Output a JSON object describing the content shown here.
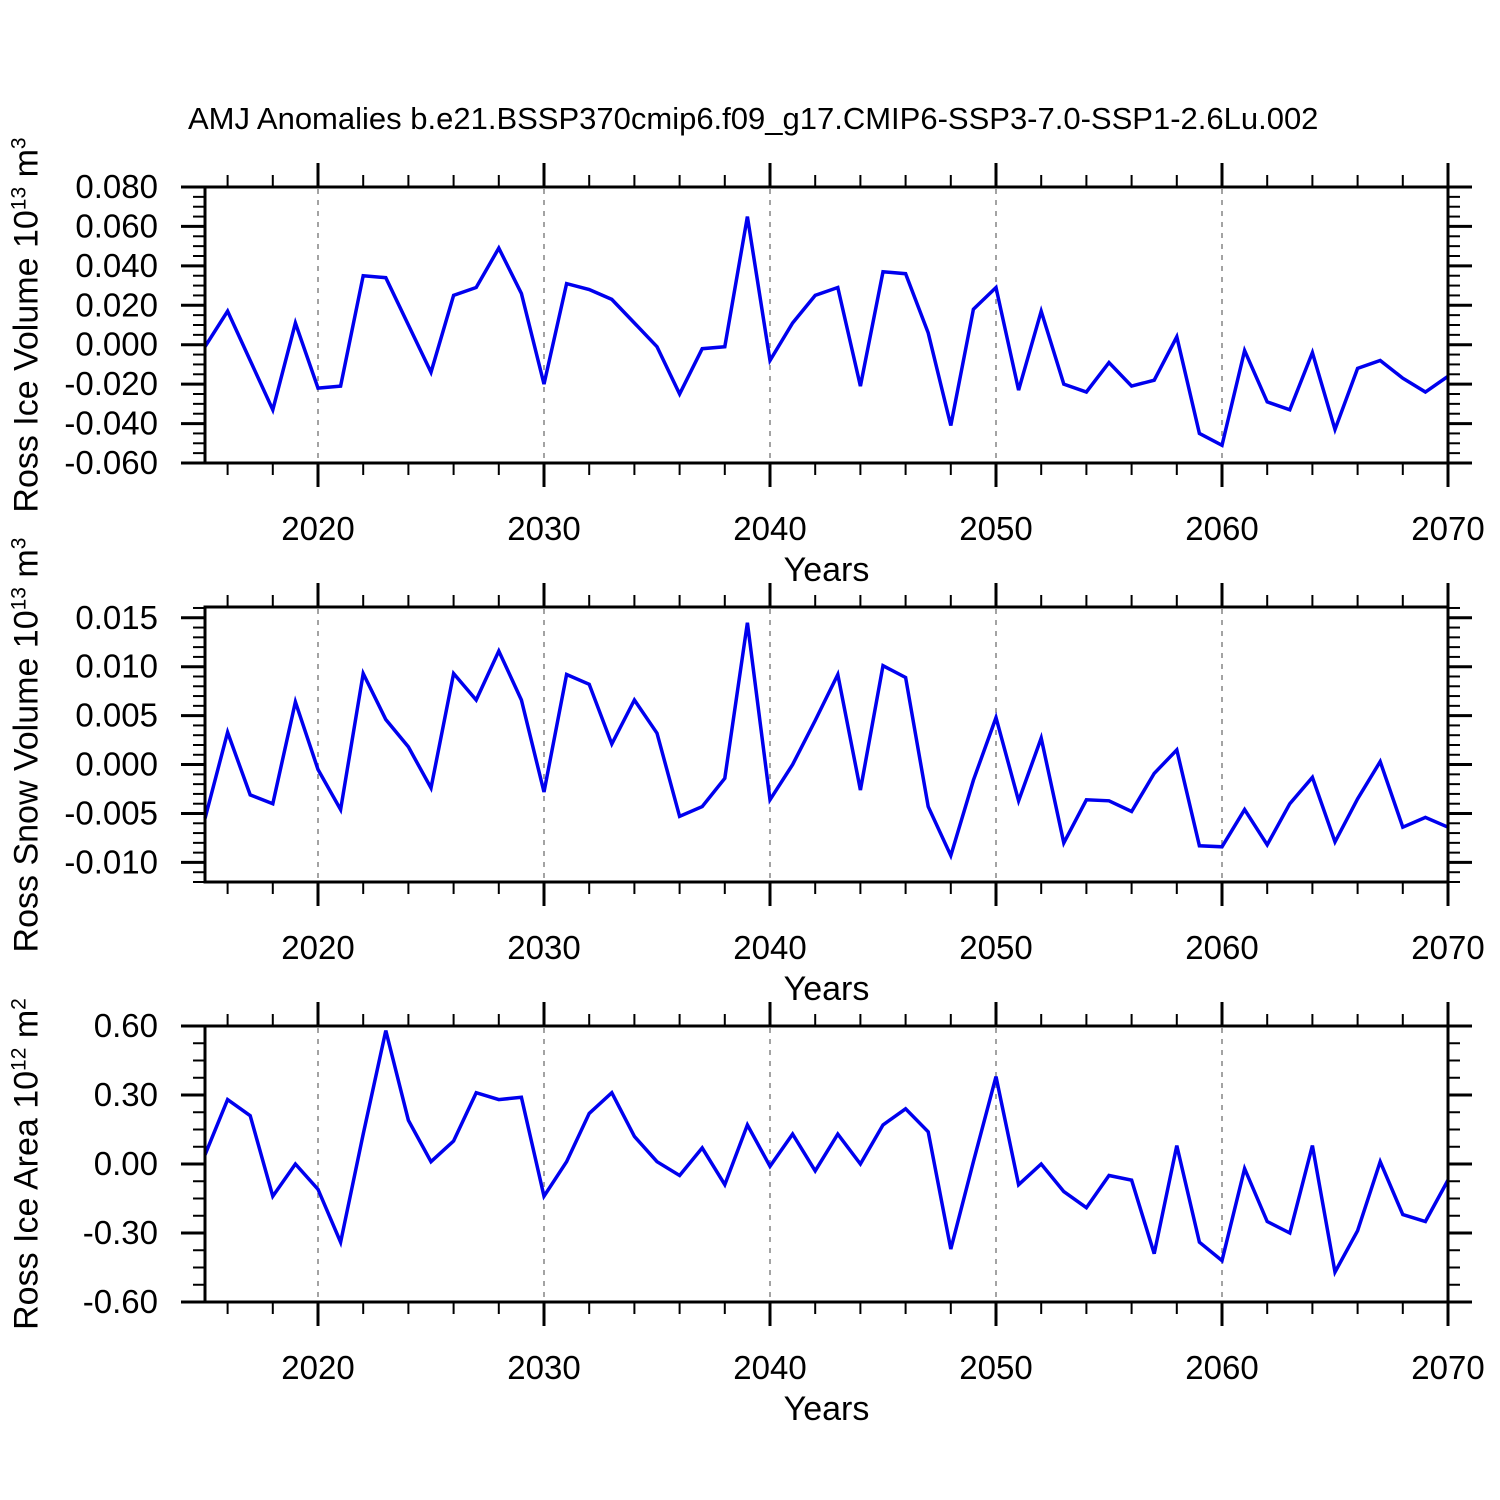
{
  "chart_data": {
    "type": "line",
    "title": "AMJ Anomalies b.e21.BSSP370cmip6.f09_g17.CMIP6-SSP3-7.0-SSP1-2.6Lu.002",
    "xlabel": "Years",
    "line_color": "#0000ee",
    "grid_color": "#999999",
    "grid_style": "dashed",
    "legend_position": "none",
    "xlim": [
      2015,
      2070
    ],
    "x_tick_labels": [
      "2020",
      "2030",
      "2040",
      "2050",
      "2060",
      "2070"
    ],
    "x_minor_step": 2,
    "grid_years": [
      2020,
      2030,
      2040,
      2050,
      2060
    ],
    "x": [
      2015,
      2016,
      2017,
      2018,
      2019,
      2020,
      2021,
      2022,
      2023,
      2024,
      2025,
      2026,
      2027,
      2028,
      2029,
      2030,
      2031,
      2032,
      2033,
      2034,
      2035,
      2036,
      2037,
      2038,
      2039,
      2040,
      2041,
      2042,
      2043,
      2044,
      2045,
      2046,
      2047,
      2048,
      2049,
      2050,
      2051,
      2052,
      2053,
      2054,
      2055,
      2056,
      2057,
      2058,
      2059,
      2060,
      2061,
      2062,
      2063,
      2064,
      2065,
      2066,
      2067,
      2068,
      2069,
      2070
    ],
    "panels": [
      {
        "name": "ross-ice-volume",
        "ylabel": "Ross Ice Volume 10^13 m^3",
        "ylabel_parts": {
          "a": "Ross Ice Volume 10",
          "b": "13",
          "c": " m",
          "d": "3"
        },
        "frame_ylim": [
          -0.06,
          0.08
        ],
        "ytick_labels": [
          "0.080",
          "0.060",
          "0.040",
          "0.020",
          "0.000",
          "-0.020",
          "-0.040",
          "-0.060"
        ],
        "ytick_minor_step": 0.005,
        "values": [
          -0.001,
          0.017,
          -0.008,
          -0.033,
          0.011,
          -0.022,
          -0.021,
          0.035,
          0.034,
          0.01,
          -0.014,
          0.025,
          0.029,
          0.049,
          0.026,
          -0.02,
          0.031,
          0.028,
          0.023,
          0.011,
          -0.001,
          -0.025,
          -0.002,
          -0.001,
          0.065,
          -0.008,
          0.011,
          0.025,
          0.029,
          -0.021,
          0.037,
          0.036,
          0.006,
          -0.041,
          0.018,
          0.029,
          -0.023,
          0.017,
          -0.02,
          -0.024,
          -0.009,
          -0.021,
          -0.018,
          0.004,
          -0.045,
          -0.051,
          -0.003,
          -0.029,
          -0.033,
          -0.004,
          -0.043,
          -0.012,
          -0.008,
          -0.017,
          -0.024,
          -0.016
        ]
      },
      {
        "name": "ross-snow-volume",
        "ylabel": "Ross Snow Volume 10^13 m^3",
        "ylabel_parts": {
          "a": "Ross Snow Volume 10",
          "b": "13",
          "c": " m",
          "d": "3"
        },
        "frame_ylim": [
          -0.012,
          0.0161
        ],
        "ytick_labels": [
          "0.015",
          "0.010",
          "0.005",
          "0.000",
          "-0.005",
          "-0.010"
        ],
        "ytick_minor_step": 0.001,
        "values": [
          -0.0055,
          0.0033,
          -0.0031,
          -0.004,
          0.0064,
          -0.0005,
          -0.0046,
          0.0093,
          0.0046,
          0.0018,
          -0.0024,
          0.0093,
          0.0066,
          0.0116,
          0.0066,
          -0.0028,
          0.0092,
          0.0082,
          0.0021,
          0.0066,
          0.0032,
          -0.0053,
          -0.0043,
          -0.0014,
          0.0145,
          -0.0036,
          0.0,
          0.0045,
          0.0092,
          -0.0026,
          0.0101,
          0.0089,
          -0.0043,
          -0.0093,
          -0.0016,
          0.0048,
          -0.0037,
          0.0027,
          -0.008,
          -0.0036,
          -0.0037,
          -0.0048,
          -0.0009,
          0.0015,
          -0.0083,
          -0.0084,
          -0.0046,
          -0.0082,
          -0.004,
          -0.0013,
          -0.0079,
          -0.0035,
          0.0003,
          -0.0064,
          -0.0054,
          -0.0064
        ]
      },
      {
        "name": "ross-ice-area",
        "ylabel": "Ross Ice Area 10^12 m^2",
        "ylabel_parts": {
          "a": "Ross Ice Area 10",
          "b": "12",
          "c": " m",
          "d": "2"
        },
        "frame_ylim": [
          -0.6,
          0.6
        ],
        "ytick_labels": [
          "0.60",
          "0.30",
          "0.00",
          "-0.30",
          "-0.60"
        ],
        "ytick_minor_step": 0.075,
        "values": [
          0.04,
          0.28,
          0.21,
          -0.14,
          0.0,
          -0.11,
          -0.34,
          0.13,
          0.58,
          0.19,
          0.01,
          0.1,
          0.31,
          0.28,
          0.29,
          -0.14,
          0.01,
          0.22,
          0.31,
          0.12,
          0.01,
          -0.05,
          0.07,
          -0.09,
          0.17,
          -0.01,
          0.13,
          -0.03,
          0.13,
          0.0,
          0.17,
          0.24,
          0.14,
          -0.37,
          0.01,
          0.38,
          -0.09,
          0.0,
          -0.12,
          -0.19,
          -0.05,
          -0.07,
          -0.39,
          0.08,
          -0.34,
          -0.42,
          -0.02,
          -0.25,
          -0.3,
          0.08,
          -0.47,
          -0.29,
          0.01,
          -0.22,
          -0.25,
          -0.07
        ]
      }
    ]
  }
}
